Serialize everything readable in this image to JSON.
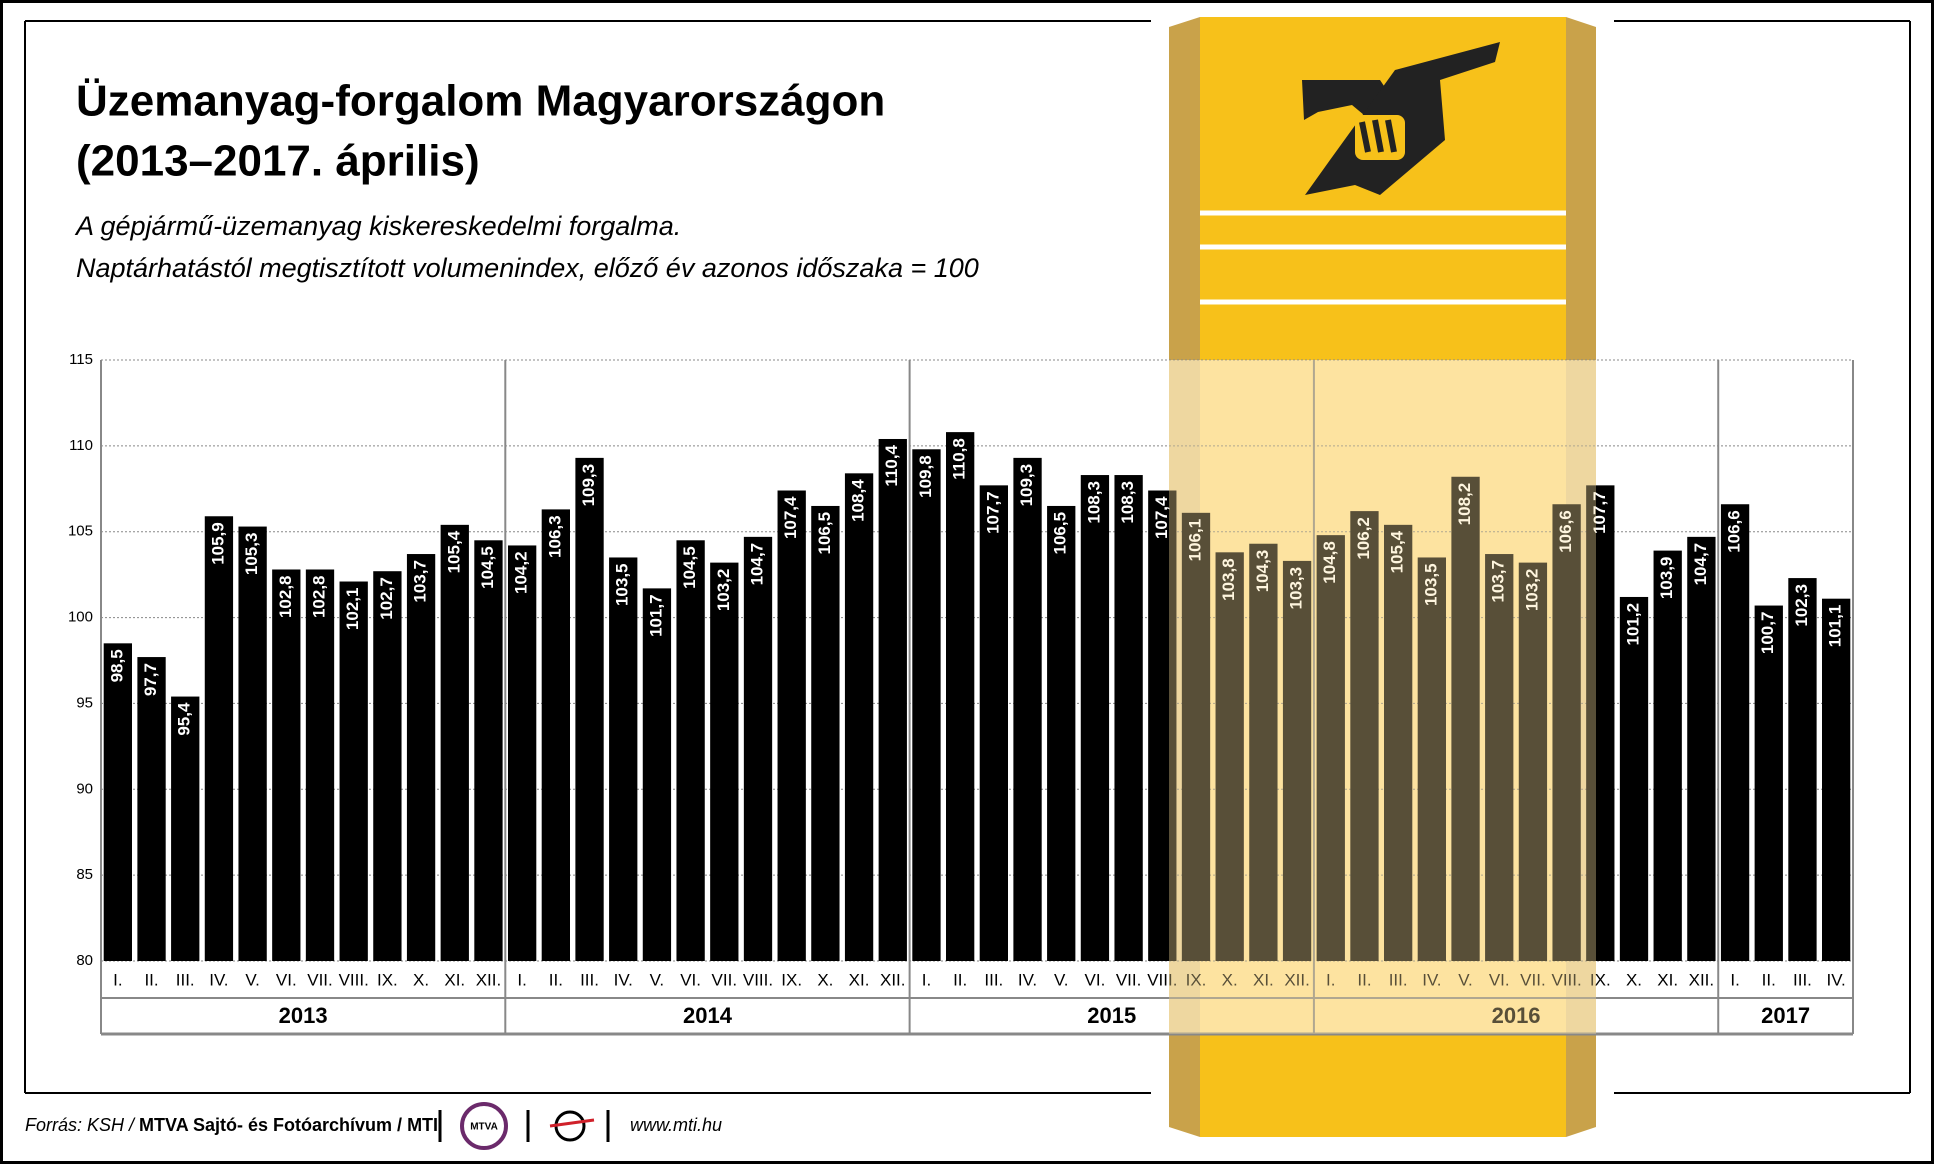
{
  "title_lines": [
    "Üzemanyag-forgalom Magyarországon",
    "(2013–2017. április)"
  ],
  "subtitle_lines": [
    "A gépjármű-üzemanyag kiskereskedelmi forgalma.",
    "Naptárhatástól megtisztított volumenindex, előző év azonos időszaka = 100"
  ],
  "chart_data": {
    "type": "bar",
    "color": "#000000",
    "value_label_color": "#ffffff",
    "ylim": [
      80,
      115
    ],
    "yticks": [
      80,
      85,
      90,
      95,
      100,
      105,
      110,
      115
    ],
    "grid": true,
    "groups": [
      {
        "label": "2013",
        "categories": [
          "I.",
          "II.",
          "III.",
          "IV.",
          "V.",
          "VI.",
          "VII.",
          "VIII.",
          "IX.",
          "X.",
          "XI.",
          "XII."
        ],
        "values": [
          98.5,
          97.7,
          95.4,
          105.9,
          105.3,
          102.8,
          102.8,
          102.1,
          102.7,
          103.7,
          105.4,
          104.5
        ],
        "value_labels": [
          "98,5",
          "97,7",
          "95,4",
          "105,9",
          "105,3",
          "102,8",
          "102,8",
          "102,1",
          "102,7",
          "103,7",
          "105,4",
          "104,5"
        ]
      },
      {
        "label": "2014",
        "categories": [
          "I.",
          "II.",
          "III.",
          "IV.",
          "V.",
          "VI.",
          "VII.",
          "VIII.",
          "IX.",
          "X.",
          "XI.",
          "XII."
        ],
        "values": [
          104.2,
          106.3,
          109.3,
          103.5,
          101.7,
          104.5,
          103.2,
          104.7,
          107.4,
          106.5,
          108.4,
          110.4
        ],
        "value_labels": [
          "104,2",
          "106,3",
          "109,3",
          "103,5",
          "101,7",
          "104,5",
          "103,2",
          "104,7",
          "107,4",
          "106,5",
          "108,4",
          "110,4"
        ]
      },
      {
        "label": "2015",
        "categories": [
          "I.",
          "II.",
          "III.",
          "IV.",
          "V.",
          "VI.",
          "VII.",
          "VIII.",
          "IX.",
          "X.",
          "XI.",
          "XII."
        ],
        "values": [
          109.8,
          110.8,
          107.7,
          109.3,
          106.5,
          108.3,
          108.3,
          107.4,
          106.1,
          103.8,
          104.3,
          103.3
        ],
        "value_labels": [
          "109,8",
          "110,8",
          "107,7",
          "109,3",
          "106,5",
          "108,3",
          "108,3",
          "107,4",
          "106,1",
          "103,8",
          "104,3",
          "103,3"
        ]
      },
      {
        "label": "2016",
        "categories": [
          "I.",
          "II.",
          "III.",
          "IV.",
          "V.",
          "VI.",
          "VII.",
          "VIII.",
          "IX.",
          "X.",
          "XI.",
          "XII."
        ],
        "values": [
          104.8,
          106.2,
          105.4,
          103.5,
          108.2,
          103.7,
          103.2,
          106.6,
          107.7,
          101.2,
          103.9,
          104.7
        ],
        "value_labels": [
          "104,8",
          "106,2",
          "105,4",
          "103,5",
          "108,2",
          "103,7",
          "103,2",
          "106,6",
          "107,7",
          "101,2",
          "103,9",
          "104,7"
        ]
      },
      {
        "label": "2017",
        "categories": [
          "I.",
          "II.",
          "III.",
          "IV."
        ],
        "values": [
          106.6,
          100.7,
          102.3,
          101.1
        ],
        "value_labels": [
          "106,6",
          "100,7",
          "102,3",
          "101,1"
        ]
      }
    ]
  },
  "footer": {
    "source_prefix": "Forrás: KSH / ",
    "source_bold": "MTVA Sajtó- és Fotóarchívum / MTI",
    "logo": "MTVA",
    "url": "www.mti.hu"
  }
}
